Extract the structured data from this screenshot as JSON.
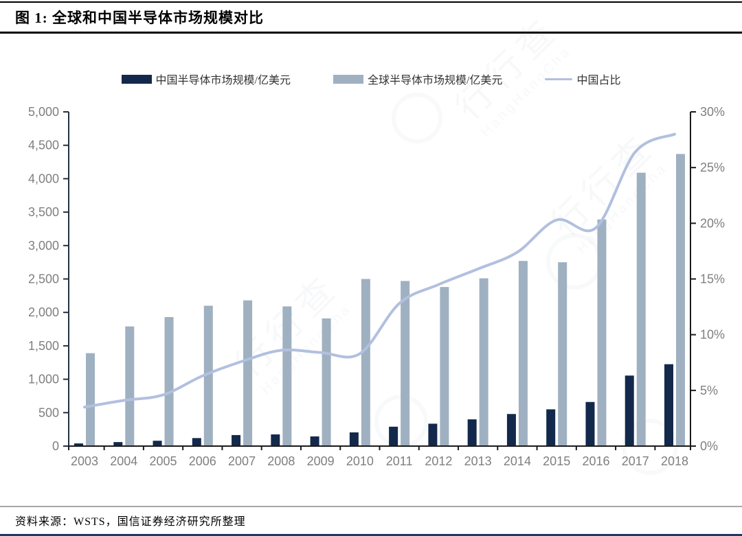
{
  "title": "图 1:  全球和中国半导体市场规模对比",
  "footer": {
    "source": "资料来源：WSTS，国信证券经济研究所整理"
  },
  "watermark": {
    "name": "行行查",
    "latin": "HangHangCha"
  },
  "colors": {
    "china_bar": "#13294B",
    "global_bar": "#9FB0C1",
    "share_line": "#B2C0DF",
    "axis": "#1a1a1a",
    "left_axis": "#233140",
    "tick_label": "#7f7f7f",
    "bottom_rule": "#1F3864"
  },
  "legend": [
    {
      "label": "中国半导体市场规模/亿美元",
      "type": "bar",
      "color": "#13294B"
    },
    {
      "label": "全球半导体市场规模/亿美元",
      "type": "bar",
      "color": "#9FB0C1"
    },
    {
      "label": "中国占比",
      "type": "line",
      "color": "#B2C0DF"
    }
  ],
  "chart_data": {
    "type": "bar",
    "subtype": "grouped-bars-with-line",
    "title": "全球和中国半导体市场规模对比",
    "categories": [
      "2003",
      "2004",
      "2005",
      "2006",
      "2007",
      "2008",
      "2009",
      "2010",
      "2011",
      "2012",
      "2013",
      "2014",
      "2015",
      "2016",
      "2017",
      "2018"
    ],
    "series": [
      {
        "name": "中国半导体市场规模/亿美元",
        "type": "bar",
        "axis": "left",
        "values": [
          40,
          60,
          80,
          120,
          165,
          175,
          145,
          205,
          290,
          335,
          400,
          480,
          550,
          660,
          1055,
          1225
        ]
      },
      {
        "name": "全球半导体市场规模/亿美元",
        "type": "bar",
        "axis": "left",
        "values": [
          1390,
          1790,
          1930,
          2100,
          2180,
          2090,
          1910,
          2500,
          2470,
          2380,
          2510,
          2770,
          2750,
          3390,
          4090,
          4370
        ]
      },
      {
        "name": "中国占比",
        "type": "line",
        "axis": "right",
        "values": [
          3.5,
          4.1,
          4.6,
          6.3,
          7.6,
          8.6,
          8.4,
          8.3,
          12.8,
          14.5,
          15.9,
          17.4,
          20.3,
          19.6,
          26.4,
          28.0
        ]
      }
    ],
    "left_axis": {
      "min": 0,
      "max": 5000,
      "tick_labels": [
        "5,000",
        "4,500",
        "4,000",
        "3,500",
        "3,000",
        "2,500",
        "2,000",
        "1,500",
        "1,000",
        "500",
        "0"
      ]
    },
    "right_axis": {
      "min": 0,
      "max": 30,
      "tick_labels": [
        "30%",
        "25%",
        "20%",
        "15%",
        "10%",
        "5%",
        "0%"
      ]
    },
    "grid": false,
    "legend_position": "top-center"
  }
}
